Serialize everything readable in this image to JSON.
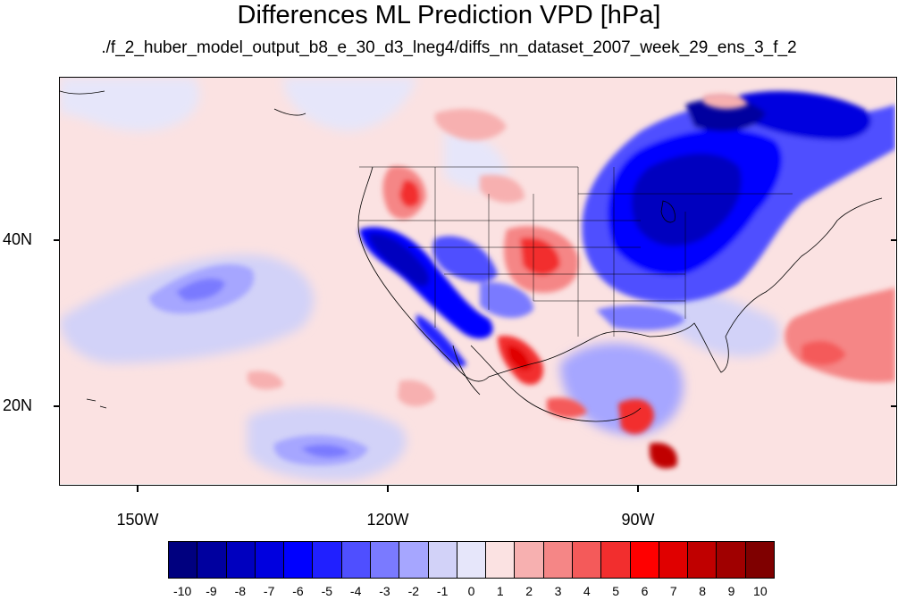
{
  "title": "Differences ML Prediction VPD [hPa]",
  "subtitle": "./f_2_huber_model_output_b8_e_30_d3_lneg4/diffs_nn_dataset_2007_week_29_ens_3_f_2",
  "latitude_labels": [
    "40N",
    "20N"
  ],
  "longitude_labels": [
    "150W",
    "120W",
    "90W"
  ],
  "colorbar": {
    "labels": [
      "-10",
      "-9",
      "-8",
      "-7",
      "-6",
      "-5",
      "-4",
      "-3",
      "-2",
      "-1",
      "0",
      "1",
      "2",
      "3",
      "4",
      "5",
      "6",
      "7",
      "8",
      "9",
      "10"
    ],
    "colors": [
      "#00007f",
      "#00009f",
      "#0000bf",
      "#0000df",
      "#0000ff",
      "#2020ff",
      "#4f4fff",
      "#7a7aff",
      "#a6a6ff",
      "#d2d2f8",
      "#e6e6fa",
      "#fbe2e2",
      "#f7b0b0",
      "#f58686",
      "#f45a5a",
      "#f22e2e",
      "#ff0000",
      "#e00000",
      "#c00000",
      "#a00000",
      "#7f0000"
    ]
  },
  "map": {
    "background_color": "#fbe2e2"
  }
}
